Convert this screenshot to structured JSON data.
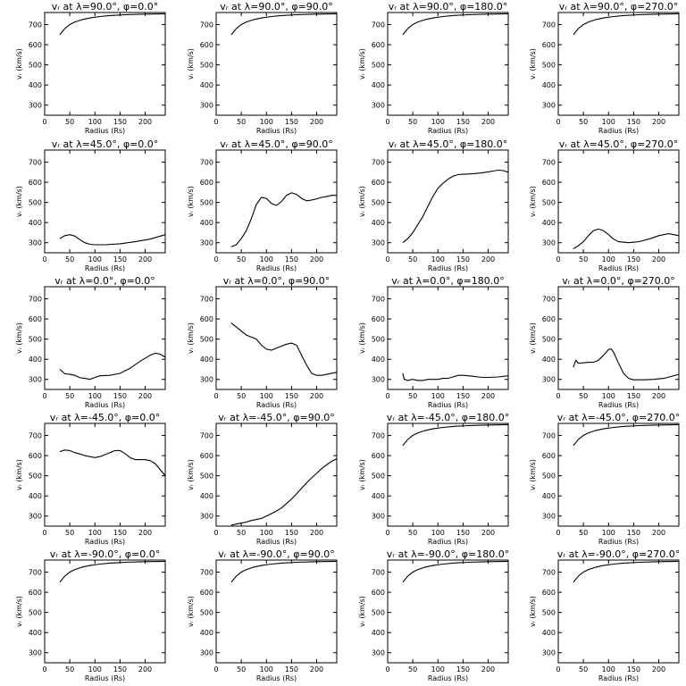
{
  "figure": {
    "rows": 5,
    "cols": 4
  },
  "chart_data": [
    {
      "type": "line",
      "title": "vᵣ at λ=90.0°, φ=0.0°",
      "xlabel": "Radius (Rs)",
      "ylabel": "vᵣ (km/s)",
      "xlim": [
        0,
        240
      ],
      "ylim": [
        250,
        760
      ],
      "xticks": [
        0,
        50,
        100,
        150,
        200
      ],
      "yticks": [
        300,
        400,
        500,
        600,
        700
      ],
      "x": [
        30,
        40,
        50,
        60,
        75,
        90,
        110,
        130,
        160,
        200,
        240
      ],
      "y": [
        650,
        680,
        700,
        713,
        725,
        733,
        740,
        745,
        749,
        752,
        754
      ]
    },
    {
      "type": "line",
      "title": "vᵣ at λ=90.0°, φ=90.0°",
      "xlabel": "Radius (Rs)",
      "ylabel": "vᵣ (km/s)",
      "xlim": [
        0,
        240
      ],
      "ylim": [
        250,
        760
      ],
      "xticks": [
        0,
        50,
        100,
        150,
        200
      ],
      "yticks": [
        300,
        400,
        500,
        600,
        700
      ],
      "x": [
        30,
        40,
        50,
        60,
        75,
        90,
        110,
        130,
        160,
        200,
        240
      ],
      "y": [
        650,
        680,
        700,
        713,
        725,
        733,
        740,
        745,
        749,
        752,
        754
      ]
    },
    {
      "type": "line",
      "title": "vᵣ at λ=90.0°, φ=180.0°",
      "xlabel": "Radius (Rs)",
      "ylabel": "vᵣ (km/s)",
      "xlim": [
        0,
        240
      ],
      "ylim": [
        250,
        760
      ],
      "xticks": [
        0,
        50,
        100,
        150,
        200
      ],
      "yticks": [
        300,
        400,
        500,
        600,
        700
      ],
      "x": [
        30,
        40,
        50,
        60,
        75,
        90,
        110,
        130,
        160,
        200,
        240
      ],
      "y": [
        650,
        680,
        700,
        713,
        725,
        733,
        740,
        745,
        749,
        752,
        754
      ]
    },
    {
      "type": "line",
      "title": "vᵣ at λ=90.0°, φ=270.0°",
      "xlabel": "Radius (Rs)",
      "ylabel": "vᵣ (km/s)",
      "xlim": [
        0,
        240
      ],
      "ylim": [
        250,
        760
      ],
      "xticks": [
        0,
        50,
        100,
        150,
        200
      ],
      "yticks": [
        300,
        400,
        500,
        600,
        700
      ],
      "x": [
        30,
        40,
        50,
        60,
        75,
        90,
        110,
        130,
        160,
        200,
        240
      ],
      "y": [
        650,
        680,
        700,
        713,
        725,
        733,
        740,
        745,
        749,
        752,
        754
      ]
    },
    {
      "type": "line",
      "title": "vᵣ at λ=45.0°, φ=0.0°",
      "xlabel": "Radius (Rs)",
      "ylabel": "vᵣ (km/s)",
      "xlim": [
        0,
        240
      ],
      "ylim": [
        250,
        760
      ],
      "xticks": [
        0,
        50,
        100,
        150,
        200
      ],
      "yticks": [
        300,
        400,
        500,
        600,
        700
      ],
      "x": [
        30,
        40,
        50,
        60,
        70,
        80,
        90,
        100,
        120,
        150,
        180,
        210,
        240
      ],
      "y": [
        320,
        335,
        340,
        333,
        315,
        300,
        292,
        290,
        290,
        295,
        305,
        318,
        340
      ]
    },
    {
      "type": "line",
      "title": "vᵣ at λ=45.0°, φ=90.0°",
      "xlabel": "Radius (Rs)",
      "ylabel": "vᵣ (km/s)",
      "xlim": [
        0,
        240
      ],
      "ylim": [
        250,
        760
      ],
      "xticks": [
        0,
        50,
        100,
        150,
        200
      ],
      "yticks": [
        300,
        400,
        500,
        600,
        700
      ],
      "x": [
        30,
        40,
        50,
        60,
        70,
        80,
        90,
        100,
        110,
        120,
        130,
        140,
        150,
        160,
        170,
        180,
        190,
        200,
        210,
        220,
        230,
        240
      ],
      "y": [
        280,
        290,
        320,
        360,
        420,
        490,
        525,
        520,
        495,
        485,
        505,
        535,
        548,
        540,
        520,
        508,
        512,
        518,
        525,
        530,
        535,
        535
      ]
    },
    {
      "type": "line",
      "title": "vᵣ at λ=45.0°, φ=180.0°",
      "xlabel": "Radius (Rs)",
      "ylabel": "vᵣ (km/s)",
      "xlim": [
        0,
        240
      ],
      "ylim": [
        250,
        760
      ],
      "xticks": [
        0,
        50,
        100,
        150,
        200
      ],
      "yticks": [
        300,
        400,
        500,
        600,
        700
      ],
      "x": [
        30,
        40,
        50,
        60,
        70,
        80,
        90,
        100,
        110,
        120,
        130,
        140,
        150,
        170,
        190,
        200,
        210,
        220,
        230,
        240
      ],
      "y": [
        300,
        320,
        350,
        390,
        430,
        480,
        530,
        570,
        595,
        615,
        630,
        638,
        640,
        642,
        648,
        652,
        656,
        660,
        658,
        650
      ]
    },
    {
      "type": "line",
      "title": "vᵣ at λ=45.0°, φ=270.0°",
      "xlabel": "Radius (Rs)",
      "ylabel": "vᵣ (km/s)",
      "xlim": [
        0,
        240
      ],
      "ylim": [
        250,
        760
      ],
      "xticks": [
        0,
        50,
        100,
        150,
        200
      ],
      "yticks": [
        300,
        400,
        500,
        600,
        700
      ],
      "x": [
        30,
        40,
        50,
        60,
        70,
        80,
        90,
        100,
        110,
        120,
        140,
        160,
        180,
        200,
        220,
        240
      ],
      "y": [
        270,
        285,
        305,
        335,
        360,
        368,
        360,
        340,
        318,
        305,
        300,
        305,
        318,
        335,
        345,
        335
      ]
    },
    {
      "type": "line",
      "title": "vᵣ at λ=0.0°, φ=0.0°",
      "xlabel": "Radius (Rs)",
      "ylabel": "vᵣ (km/s)",
      "xlim": [
        0,
        240
      ],
      "ylim": [
        250,
        760
      ],
      "xticks": [
        0,
        50,
        100,
        150,
        200
      ],
      "yticks": [
        300,
        400,
        500,
        600,
        700
      ],
      "x": [
        30,
        40,
        50,
        60,
        70,
        80,
        90,
        100,
        110,
        130,
        150,
        170,
        190,
        210,
        220,
        230,
        240
      ],
      "y": [
        350,
        328,
        325,
        320,
        308,
        305,
        300,
        310,
        318,
        320,
        330,
        355,
        390,
        420,
        430,
        425,
        410
      ]
    },
    {
      "type": "line",
      "title": "vᵣ at λ=0.0°, φ=90.0°",
      "xlabel": "Radius (Rs)",
      "ylabel": "vᵣ (km/s)",
      "xlim": [
        0,
        240
      ],
      "ylim": [
        250,
        760
      ],
      "xticks": [
        0,
        50,
        100,
        150,
        200
      ],
      "yticks": [
        300,
        400,
        500,
        600,
        700
      ],
      "x": [
        30,
        40,
        50,
        60,
        70,
        80,
        90,
        100,
        110,
        120,
        130,
        140,
        150,
        160,
        170,
        180,
        190,
        200,
        210,
        220,
        240
      ],
      "y": [
        580,
        560,
        540,
        520,
        510,
        500,
        470,
        450,
        445,
        455,
        465,
        475,
        480,
        470,
        420,
        370,
        330,
        320,
        320,
        325,
        335
      ]
    },
    {
      "type": "line",
      "title": "vᵣ at λ=0.0°, φ=180.0°",
      "xlabel": "Radius (Rs)",
      "ylabel": "vᵣ (km/s)",
      "xlim": [
        0,
        240
      ],
      "ylim": [
        250,
        760
      ],
      "xticks": [
        0,
        50,
        100,
        150,
        200
      ],
      "yticks": [
        300,
        400,
        500,
        600,
        700
      ],
      "x": [
        30,
        33,
        40,
        50,
        60,
        70,
        80,
        90,
        100,
        110,
        120,
        130,
        140,
        150,
        160,
        170,
        180,
        190,
        200,
        220,
        240
      ],
      "y": [
        330,
        300,
        295,
        300,
        295,
        295,
        300,
        300,
        300,
        305,
        305,
        312,
        320,
        320,
        318,
        315,
        312,
        310,
        310,
        312,
        318
      ]
    },
    {
      "type": "line",
      "title": "vᵣ at λ=0.0°, φ=270.0°",
      "xlabel": "Radius (Rs)",
      "ylabel": "vᵣ (km/s)",
      "xlim": [
        0,
        240
      ],
      "ylim": [
        250,
        760
      ],
      "xticks": [
        0,
        50,
        100,
        150,
        200
      ],
      "yticks": [
        300,
        400,
        500,
        600,
        700
      ],
      "x": [
        30,
        35,
        40,
        50,
        60,
        70,
        80,
        90,
        100,
        105,
        110,
        120,
        130,
        140,
        150,
        170,
        190,
        210,
        240
      ],
      "y": [
        360,
        395,
        380,
        382,
        385,
        385,
        395,
        420,
        448,
        452,
        435,
        380,
        330,
        305,
        298,
        298,
        300,
        305,
        325
      ]
    },
    {
      "type": "line",
      "title": "vᵣ at λ=-45.0°, φ=0.0°",
      "xlabel": "Radius (Rs)",
      "ylabel": "vᵣ (km/s)",
      "xlim": [
        0,
        240
      ],
      "ylim": [
        250,
        760
      ],
      "xticks": [
        0,
        50,
        100,
        150,
        200
      ],
      "yticks": [
        300,
        400,
        500,
        600,
        700
      ],
      "x": [
        30,
        40,
        50,
        60,
        70,
        80,
        90,
        100,
        110,
        120,
        130,
        140,
        150,
        160,
        170,
        180,
        190,
        200,
        210,
        220,
        230,
        240
      ],
      "y": [
        620,
        628,
        625,
        615,
        608,
        600,
        595,
        590,
        595,
        605,
        615,
        625,
        625,
        610,
        590,
        580,
        580,
        580,
        575,
        560,
        530,
        500
      ]
    },
    {
      "type": "line",
      "title": "vᵣ at λ=-45.0°, φ=90.0°",
      "xlabel": "Radius (Rs)",
      "ylabel": "vᵣ (km/s)",
      "xlim": [
        0,
        240
      ],
      "ylim": [
        250,
        760
      ],
      "xticks": [
        0,
        50,
        100,
        150,
        200
      ],
      "yticks": [
        300,
        400,
        500,
        600,
        700
      ],
      "x": [
        30,
        40,
        50,
        60,
        70,
        80,
        90,
        100,
        110,
        120,
        130,
        140,
        150,
        160,
        170,
        180,
        190,
        200,
        210,
        220,
        230,
        240
      ],
      "y": [
        255,
        260,
        265,
        270,
        278,
        283,
        288,
        300,
        312,
        325,
        340,
        362,
        385,
        410,
        438,
        465,
        490,
        512,
        535,
        555,
        572,
        585
      ]
    },
    {
      "type": "line",
      "title": "vᵣ at λ=-45.0°, φ=180.0°",
      "xlabel": "Radius (Rs)",
      "ylabel": "vᵣ (km/s)",
      "xlim": [
        0,
        240
      ],
      "ylim": [
        250,
        760
      ],
      "xticks": [
        0,
        50,
        100,
        150,
        200
      ],
      "yticks": [
        300,
        400,
        500,
        600,
        700
      ],
      "x": [
        30,
        40,
        50,
        60,
        75,
        90,
        110,
        130,
        160,
        200,
        240
      ],
      "y": [
        650,
        680,
        700,
        713,
        725,
        733,
        740,
        745,
        749,
        752,
        754
      ]
    },
    {
      "type": "line",
      "title": "vᵣ at λ=-45.0°, φ=270.0°",
      "xlabel": "Radius (Rs)",
      "ylabel": "vᵣ (km/s)",
      "xlim": [
        0,
        240
      ],
      "ylim": [
        250,
        760
      ],
      "xticks": [
        0,
        50,
        100,
        150,
        200
      ],
      "yticks": [
        300,
        400,
        500,
        600,
        700
      ],
      "x": [
        30,
        40,
        50,
        60,
        75,
        90,
        110,
        130,
        160,
        200,
        240
      ],
      "y": [
        650,
        680,
        700,
        713,
        725,
        733,
        740,
        745,
        749,
        752,
        754
      ]
    },
    {
      "type": "line",
      "title": "vᵣ at λ=-90.0°, φ=0.0°",
      "xlabel": "Radius (Rs)",
      "ylabel": "vᵣ (km/s)",
      "xlim": [
        0,
        240
      ],
      "ylim": [
        250,
        760
      ],
      "xticks": [
        0,
        50,
        100,
        150,
        200
      ],
      "yticks": [
        300,
        400,
        500,
        600,
        700
      ],
      "x": [
        30,
        40,
        50,
        60,
        75,
        90,
        110,
        130,
        160,
        200,
        240
      ],
      "y": [
        650,
        680,
        700,
        713,
        725,
        733,
        740,
        745,
        749,
        752,
        754
      ]
    },
    {
      "type": "line",
      "title": "vᵣ at λ=-90.0°, φ=90.0°",
      "xlabel": "Radius (Rs)",
      "ylabel": "vᵣ (km/s)",
      "xlim": [
        0,
        240
      ],
      "ylim": [
        250,
        760
      ],
      "xticks": [
        0,
        50,
        100,
        150,
        200
      ],
      "yticks": [
        300,
        400,
        500,
        600,
        700
      ],
      "x": [
        30,
        40,
        50,
        60,
        75,
        90,
        110,
        130,
        160,
        200,
        240
      ],
      "y": [
        650,
        680,
        700,
        713,
        725,
        733,
        740,
        745,
        749,
        752,
        754
      ]
    },
    {
      "type": "line",
      "title": "vᵣ at λ=-90.0°, φ=180.0°",
      "xlabel": "Radius (Rs)",
      "ylabel": "vᵣ (km/s)",
      "xlim": [
        0,
        240
      ],
      "ylim": [
        250,
        760
      ],
      "xticks": [
        0,
        50,
        100,
        150,
        200
      ],
      "yticks": [
        300,
        400,
        500,
        600,
        700
      ],
      "x": [
        30,
        40,
        50,
        60,
        75,
        90,
        110,
        130,
        160,
        200,
        240
      ],
      "y": [
        650,
        680,
        700,
        713,
        725,
        733,
        740,
        745,
        749,
        752,
        754
      ]
    },
    {
      "type": "line",
      "title": "vᵣ at λ=-90.0°, φ=270.0°",
      "xlabel": "Radius (Rs)",
      "ylabel": "vᵣ (km/s)",
      "xlim": [
        0,
        240
      ],
      "ylim": [
        250,
        760
      ],
      "xticks": [
        0,
        50,
        100,
        150,
        200
      ],
      "yticks": [
        300,
        400,
        500,
        600,
        700
      ],
      "x": [
        30,
        40,
        50,
        60,
        75,
        90,
        110,
        130,
        160,
        200,
        240
      ],
      "y": [
        650,
        680,
        700,
        713,
        725,
        733,
        740,
        745,
        749,
        752,
        754
      ]
    }
  ]
}
